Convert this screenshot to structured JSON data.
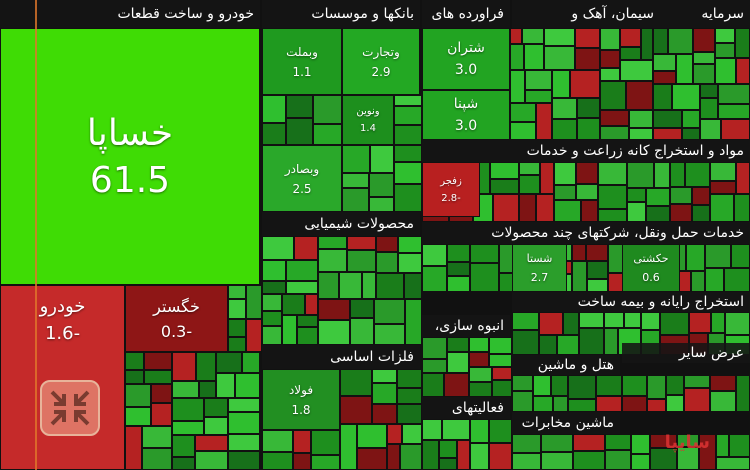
{
  "sectors": [
    {
      "label": "خودرو و ساخت قطعات"
    },
    {
      "label": "بانکها و موسسات"
    },
    {
      "label": "فراورده های"
    },
    {
      "label": "سیمان، آهک و"
    },
    {
      "label": "سرمایه"
    },
    {
      "label": "محصولات شیمیایی"
    },
    {
      "label": "فلزات اساسی"
    },
    {
      "label": "مواد و استخراج کانه زراعت و خدمات"
    },
    {
      "label": "خدمات حمل ونقل، شرکتهای چند محصولات"
    },
    {
      "label": "استخراج رایانه و بیمه ساخت"
    },
    {
      "label": "انبوه سازی،"
    },
    {
      "label": "هتل و ماشین"
    },
    {
      "label": "عرض سایر"
    },
    {
      "label": "فعالیتهای"
    },
    {
      "label": "ماشین مخابرات"
    }
  ],
  "tiles": [
    {
      "name": "خساپا",
      "value": "61.5"
    },
    {
      "name": "خودرو",
      "value": "1.6-"
    },
    {
      "name": "خگستر",
      "value": "0.3-"
    },
    {
      "name": "وبملت",
      "value": "1.1"
    },
    {
      "name": "وتجارت",
      "value": "2.9"
    },
    {
      "name": "ونوین",
      "value": "1.4"
    },
    {
      "name": "وبصادر",
      "value": "2.5"
    },
    {
      "name": "شتران",
      "value": "3.0"
    },
    {
      "name": "شپنا",
      "value": "3.0"
    },
    {
      "name": "شستا",
      "value": "2.7"
    },
    {
      "name": "حکشتی",
      "value": "0.6"
    },
    {
      "name": "فولاد",
      "value": "1.8"
    },
    {
      "name": "زفجر",
      "value": "2.8-"
    }
  ],
  "watermark": "سایپا"
}
